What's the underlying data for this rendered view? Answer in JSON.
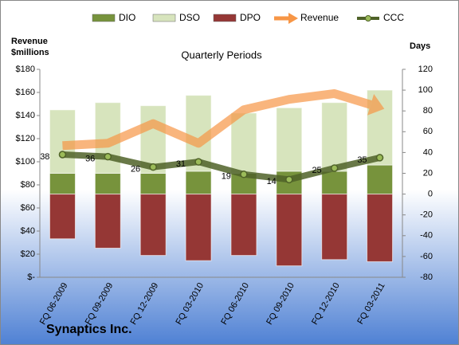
{
  "chart_data": {
    "type": "stacked-bar-line",
    "title": "Quarterly Periods",
    "ylabel": [
      "Revenue",
      "$millions"
    ],
    "y2label": "Days",
    "footer": "Synaptics Inc.",
    "categories": [
      "FQ 06-2009",
      "FQ 09-2009",
      "FQ 12-2009",
      "FQ 03-2010",
      "FQ 06-2010",
      "FQ 09-2010",
      "FQ 12-2010",
      "FQ 03-2011"
    ],
    "series": [
      {
        "name": "DIO",
        "color": "#77933c",
        "type": "bar",
        "axis": "y2",
        "values": [
          20,
          20,
          20,
          22,
          20,
          22,
          22,
          28
        ]
      },
      {
        "name": "DSO",
        "color": "#d7e4bd",
        "type": "bar",
        "axis": "y2",
        "values": [
          61,
          68,
          65,
          73,
          58,
          61,
          66,
          72
        ]
      },
      {
        "name": "DPO",
        "color": "#953735",
        "type": "bar",
        "axis": "y2",
        "values": [
          -43,
          -52,
          -59,
          -64,
          -59,
          -69,
          -63,
          -65
        ]
      },
      {
        "name": "Revenue",
        "color": "#f79646",
        "type": "arrow-line",
        "values": [
          114,
          116,
          133,
          116,
          145,
          154,
          159,
          147
        ]
      },
      {
        "name": "CCC",
        "color": "#4f6228",
        "type": "line",
        "axis": "y2",
        "values": [
          38,
          36,
          26,
          31,
          19,
          14,
          25,
          35
        ]
      }
    ],
    "ylim": [
      0,
      180
    ],
    "yticks": [
      {
        "value": 0,
        "label": "$-"
      },
      {
        "value": 20,
        "label": "$20"
      },
      {
        "value": 40,
        "label": "$40"
      },
      {
        "value": 60,
        "label": "$60"
      },
      {
        "value": 80,
        "label": "$80"
      },
      {
        "value": 100,
        "label": "$100"
      },
      {
        "value": 120,
        "label": "$120"
      },
      {
        "value": 140,
        "label": "$140"
      },
      {
        "value": 160,
        "label": "$160"
      },
      {
        "value": 180,
        "label": "$180"
      }
    ],
    "y2lim": [
      -80,
      120
    ],
    "y2ticks": [
      -80,
      -60,
      -40,
      -20,
      0,
      20,
      40,
      60,
      80,
      100,
      120
    ],
    "grid": false
  }
}
